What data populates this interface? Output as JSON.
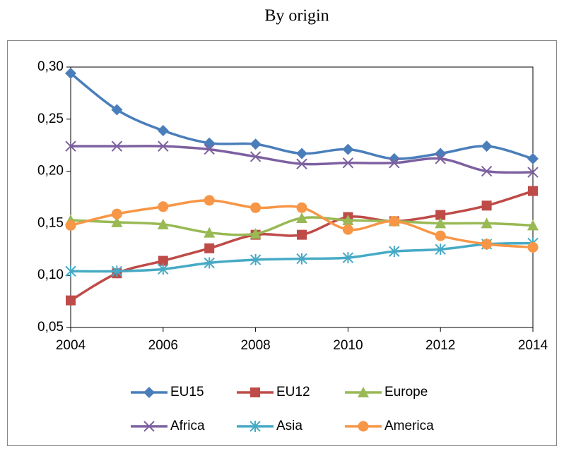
{
  "chart_data": {
    "type": "line",
    "title": "By origin",
    "x": [
      2004,
      2005,
      2006,
      2007,
      2008,
      2009,
      2010,
      2011,
      2012,
      2013,
      2014
    ],
    "xlim": [
      2004,
      2014
    ],
    "xticks": [
      2004,
      2006,
      2008,
      2010,
      2012,
      2014
    ],
    "ylim": [
      0.05,
      0.3
    ],
    "yticks": [
      {
        "value": 0.05,
        "label": "0,05"
      },
      {
        "value": 0.1,
        "label": "0,10"
      },
      {
        "value": 0.15,
        "label": "0,15"
      },
      {
        "value": 0.2,
        "label": "0,20"
      },
      {
        "value": 0.25,
        "label": "0,25"
      },
      {
        "value": 0.3,
        "label": "0,30"
      }
    ],
    "smooth": true,
    "series": [
      {
        "name": "EU15",
        "color": "#4a7ebb",
        "marker": "diamond",
        "values": [
          0.294,
          0.259,
          0.239,
          0.227,
          0.226,
          0.217,
          0.221,
          0.212,
          0.217,
          0.224,
          0.212
        ]
      },
      {
        "name": "EU12",
        "color": "#be4b48",
        "marker": "square",
        "values": [
          0.076,
          0.102,
          0.114,
          0.126,
          0.139,
          0.139,
          0.156,
          0.152,
          0.158,
          0.167,
          0.181
        ]
      },
      {
        "name": "Europe",
        "color": "#98b954",
        "marker": "triangle",
        "values": [
          0.153,
          0.151,
          0.149,
          0.141,
          0.14,
          0.155,
          0.153,
          0.152,
          0.15,
          0.15,
          0.148
        ]
      },
      {
        "name": "Africa",
        "color": "#7d60a0",
        "marker": "x",
        "values": [
          0.224,
          0.224,
          0.224,
          0.221,
          0.214,
          0.207,
          0.208,
          0.208,
          0.212,
          0.2,
          0.199
        ]
      },
      {
        "name": "Asia",
        "color": "#46aac5",
        "marker": "asterisk",
        "values": [
          0.104,
          0.104,
          0.106,
          0.112,
          0.115,
          0.116,
          0.117,
          0.123,
          0.125,
          0.13,
          0.131
        ]
      },
      {
        "name": "America",
        "color": "#f79646",
        "marker": "circle",
        "values": [
          0.148,
          0.159,
          0.166,
          0.172,
          0.165,
          0.165,
          0.144,
          0.152,
          0.138,
          0.13,
          0.127
        ]
      }
    ]
  }
}
